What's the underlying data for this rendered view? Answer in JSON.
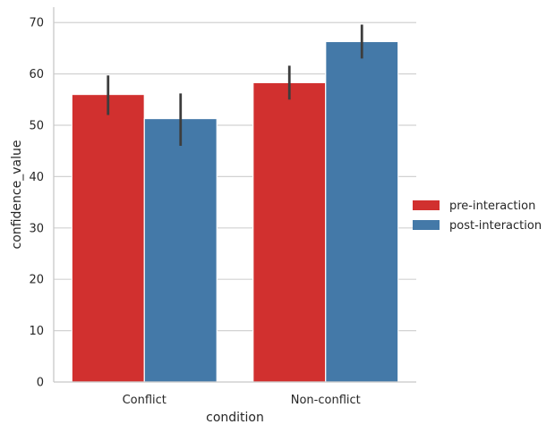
{
  "chart_data": {
    "type": "bar",
    "title": "",
    "xlabel": "condition",
    "ylabel": "confidence_value",
    "categories": [
      "Conflict",
      "Non-conflict"
    ],
    "series": [
      {
        "name": "pre-interaction",
        "color": "#d1302f",
        "values": [
          56.0,
          58.3
        ],
        "error_low": [
          52.0,
          55.0
        ],
        "error_high": [
          59.7,
          61.6
        ]
      },
      {
        "name": "post-interaction",
        "color": "#4479a8",
        "values": [
          51.3,
          66.3
        ],
        "error_low": [
          46.0,
          63.0
        ],
        "error_high": [
          56.2,
          69.6
        ]
      }
    ],
    "ylim": [
      0,
      73
    ],
    "yticks": [
      0,
      10,
      20,
      30,
      40,
      50,
      60,
      70
    ],
    "grid": "horizontal",
    "legend_position": "right"
  }
}
